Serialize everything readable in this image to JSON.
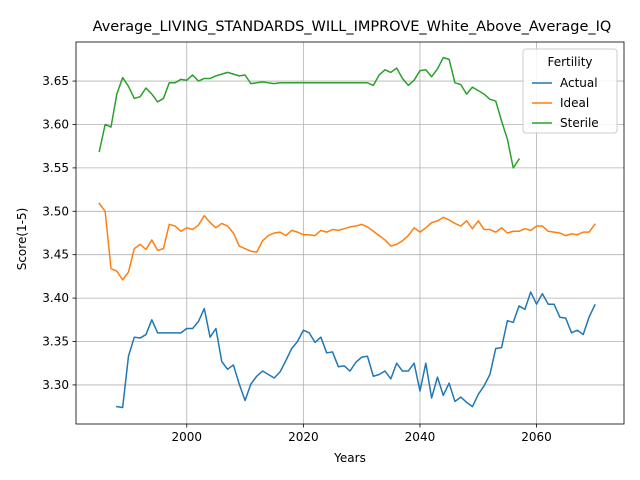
{
  "chart_data": {
    "type": "line",
    "title": "Average_LIVING_STANDARDS_WILL_IMPROVE_White_Above_Average_IQ",
    "xlabel": "Years",
    "ylabel": "Score(1-5)",
    "xlim": [
      1981,
      2075
    ],
    "ylim": [
      3.255,
      3.695
    ],
    "xticks": [
      2000,
      2020,
      2040,
      2060
    ],
    "yticks": [
      3.3,
      3.35,
      3.4,
      3.45,
      3.5,
      3.55,
      3.6,
      3.65
    ],
    "grid": true,
    "legend": {
      "title": "Fertility",
      "position": "top-right"
    },
    "series": [
      {
        "name": "Actual",
        "color": "#1f77b4",
        "x": [
          1988,
          1989,
          1990,
          1991,
          1992,
          1993,
          1994,
          1995,
          1996,
          1997,
          1998,
          1999,
          2000,
          2001,
          2002,
          2003,
          2004,
          2005,
          2006,
          2007,
          2008,
          2009,
          2010,
          2011,
          2012,
          2013,
          2014,
          2015,
          2016,
          2017,
          2018,
          2019,
          2020,
          2021,
          2022,
          2023,
          2024,
          2025,
          2026,
          2027,
          2028,
          2029,
          2030,
          2031,
          2032,
          2033,
          2034,
          2035,
          2036,
          2037,
          2038,
          2039,
          2040,
          2041,
          2042,
          2043,
          2044,
          2045,
          2046,
          2047,
          2048,
          2049,
          2050,
          2051,
          2052,
          2053,
          2054,
          2055,
          2056,
          2057,
          2058,
          2059,
          2060,
          2061,
          2062,
          2063,
          2064,
          2065,
          2066,
          2067,
          2068,
          2069,
          2070
        ],
        "y": [
          3.275,
          3.274,
          3.333,
          3.355,
          3.354,
          3.358,
          3.375,
          3.36,
          3.36,
          3.36,
          3.36,
          3.36,
          3.365,
          3.365,
          3.373,
          3.388,
          3.355,
          3.365,
          3.327,
          3.318,
          3.323,
          3.301,
          3.282,
          3.301,
          3.31,
          3.316,
          3.312,
          3.308,
          3.315,
          3.328,
          3.342,
          3.35,
          3.363,
          3.36,
          3.349,
          3.355,
          3.337,
          3.338,
          3.321,
          3.322,
          3.316,
          3.326,
          3.332,
          3.333,
          3.31,
          3.312,
          3.316,
          3.307,
          3.325,
          3.316,
          3.316,
          3.325,
          3.293,
          3.325,
          3.285,
          3.309,
          3.288,
          3.302,
          3.281,
          3.286,
          3.28,
          3.275,
          3.289,
          3.299,
          3.312,
          3.342,
          3.343,
          3.374,
          3.372,
          3.391,
          3.387,
          3.407,
          3.393,
          3.405,
          3.393,
          3.393,
          3.378,
          3.377,
          3.36,
          3.363,
          3.358,
          3.378,
          3.392
        ]
      },
      {
        "name": "Ideal",
        "color": "#ff7f0e",
        "x": [
          1985,
          1986,
          1987,
          1988,
          1989,
          1990,
          1991,
          1992,
          1993,
          1994,
          1995,
          1996,
          1997,
          1998,
          1999,
          2000,
          2001,
          2002,
          2003,
          2004,
          2005,
          2006,
          2007,
          2008,
          2009,
          2010,
          2011,
          2012,
          2013,
          2014,
          2015,
          2016,
          2017,
          2018,
          2019,
          2020,
          2021,
          2022,
          2023,
          2024,
          2025,
          2026,
          2027,
          2028,
          2029,
          2030,
          2031,
          2032,
          2033,
          2034,
          2035,
          2036,
          2037,
          2038,
          2039,
          2040,
          2041,
          2042,
          2043,
          2044,
          2045,
          2046,
          2047,
          2048,
          2049,
          2050,
          2051,
          2052,
          2053,
          2054,
          2055,
          2056,
          2057,
          2058,
          2059,
          2060,
          2061,
          2062,
          2063,
          2064,
          2065,
          2066,
          2067,
          2068,
          2069,
          2070
        ],
        "y": [
          3.509,
          3.5,
          3.434,
          3.431,
          3.421,
          3.43,
          3.457,
          3.462,
          3.456,
          3.467,
          3.455,
          3.457,
          3.485,
          3.483,
          3.477,
          3.481,
          3.479,
          3.484,
          3.495,
          3.487,
          3.481,
          3.486,
          3.483,
          3.475,
          3.46,
          3.457,
          3.454,
          3.453,
          3.466,
          3.472,
          3.475,
          3.476,
          3.472,
          3.478,
          3.476,
          3.473,
          3.473,
          3.472,
          3.478,
          3.476,
          3.479,
          3.478,
          3.48,
          3.482,
          3.483,
          3.485,
          3.482,
          3.477,
          3.472,
          3.467,
          3.46,
          3.462,
          3.466,
          3.472,
          3.481,
          3.476,
          3.481,
          3.487,
          3.489,
          3.493,
          3.49,
          3.486,
          3.483,
          3.489,
          3.48,
          3.489,
          3.479,
          3.479,
          3.476,
          3.481,
          3.475,
          3.477,
          3.477,
          3.48,
          3.478,
          3.483,
          3.483,
          3.477,
          3.476,
          3.475,
          3.472,
          3.474,
          3.473,
          3.476,
          3.476,
          3.485
        ]
      },
      {
        "name": "Sterile",
        "color": "#2ca02c",
        "x": [
          1985,
          1986,
          1987,
          1988,
          1989,
          1990,
          1991,
          1992,
          1993,
          1994,
          1995,
          1996,
          1997,
          1998,
          1999,
          2000,
          2001,
          2002,
          2003,
          2004,
          2005,
          2006,
          2007,
          2008,
          2009,
          2010,
          2011,
          2012,
          2013,
          2014,
          2015,
          2016,
          2017,
          2018,
          2019,
          2020,
          2021,
          2022,
          2023,
          2024,
          2025,
          2026,
          2027,
          2028,
          2029,
          2030,
          2031,
          2032,
          2033,
          2034,
          2035,
          2036,
          2037,
          2038,
          2039,
          2040,
          2041,
          2042,
          2043,
          2044,
          2045,
          2046,
          2047,
          2048,
          2049,
          2050,
          2051,
          2052,
          2053,
          2054,
          2055,
          2056,
          2057
        ],
        "y": [
          3.569,
          3.6,
          3.597,
          3.635,
          3.654,
          3.644,
          3.63,
          3.632,
          3.642,
          3.635,
          3.626,
          3.63,
          3.648,
          3.648,
          3.652,
          3.651,
          3.657,
          3.65,
          3.653,
          3.653,
          3.656,
          3.658,
          3.66,
          3.658,
          3.656,
          3.657,
          3.647,
          3.648,
          3.649,
          3.648,
          3.647,
          3.648,
          3.648,
          3.648,
          3.648,
          3.648,
          3.648,
          3.648,
          3.648,
          3.648,
          3.648,
          3.648,
          3.648,
          3.648,
          3.648,
          3.648,
          3.648,
          3.645,
          3.657,
          3.663,
          3.66,
          3.665,
          3.653,
          3.645,
          3.651,
          3.662,
          3.663,
          3.655,
          3.664,
          3.677,
          3.675,
          3.648,
          3.646,
          3.635,
          3.643,
          3.639,
          3.635,
          3.629,
          3.627,
          3.604,
          3.583,
          3.55,
          3.56
        ]
      }
    ]
  }
}
